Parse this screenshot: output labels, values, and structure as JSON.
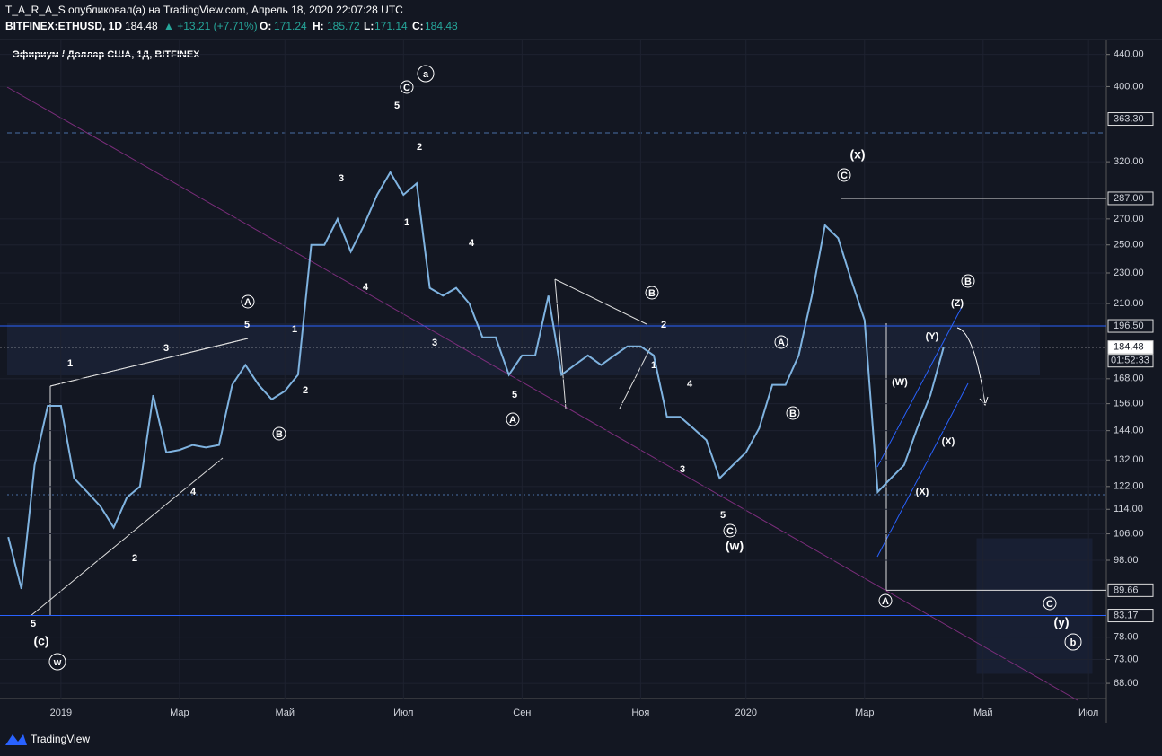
{
  "header": {
    "line1": "T_A_R_A_S опубликовал(а) на TradingView.com, Апрель 18, 2020 22:07:28 UTC",
    "symbol": "BITFINEX:ETHUSD, 1D",
    "last": "184.48",
    "change": "▲ +13.21 (+7.71%)",
    "o_label": "O:",
    "o": "171.24",
    "h_label": "H:",
    "h": "185.72",
    "l_label": "L:",
    "l": "171.14",
    "c_label": "C:",
    "c": "184.48"
  },
  "footer": {
    "brand": "TradingView"
  },
  "chart_data": {
    "type": "line",
    "title": "Эфириум / Доллар США, 1Д, BITFINEX",
    "categories": [
      null,
      null,
      null,
      null,
      "2019",
      null,
      null,
      null,
      null,
      null,
      null,
      null,
      null,
      "Мар",
      null,
      null,
      null,
      null,
      null,
      null,
      null,
      "Май",
      null,
      null,
      null,
      null,
      null,
      null,
      null,
      null,
      "Июл",
      null,
      null,
      null,
      null,
      null,
      null,
      null,
      null,
      "Сен",
      null,
      null,
      null,
      null,
      null,
      null,
      null,
      null,
      "Ноя",
      null,
      null,
      null,
      null,
      null,
      null,
      null,
      "2020",
      null,
      null,
      null,
      null,
      null,
      null,
      null,
      null,
      "Мар",
      null,
      null,
      null,
      null,
      null,
      null,
      null,
      null,
      "Май",
      null,
      null,
      null,
      null,
      null,
      null,
      null,
      "Июл"
    ],
    "series": [
      {
        "name": "ETHUSD",
        "color": "#7fb3e0",
        "values": [
          105,
          90,
          130,
          155,
          155,
          125,
          120,
          115,
          108,
          118,
          122,
          160,
          135,
          136,
          138,
          137,
          138,
          165,
          175,
          165,
          158,
          162,
          170,
          250,
          250,
          270,
          245,
          265,
          290,
          310,
          290,
          300,
          220,
          215,
          220,
          210,
          190,
          190,
          170,
          180,
          180,
          215,
          170,
          175,
          180,
          175,
          180,
          185,
          185,
          180,
          150,
          150,
          145,
          140,
          125,
          130,
          135,
          145,
          165,
          165,
          180,
          215,
          265,
          255,
          225,
          200,
          120,
          125,
          130,
          145,
          160,
          184.48,
          null,
          null,
          null,
          null,
          null,
          null,
          null,
          null,
          null,
          null,
          null
        ]
      }
    ],
    "log_scale": true,
    "ylim": [
      65,
      460
    ],
    "yticks": [
      {
        "value": 440,
        "label": "440.00"
      },
      {
        "value": 400,
        "label": "400.00"
      },
      {
        "value": 320,
        "label": "320.00"
      },
      {
        "value": 270,
        "label": "270.00"
      },
      {
        "value": 250,
        "label": "250.00"
      },
      {
        "value": 230,
        "label": "230.00"
      },
      {
        "value": 210,
        "label": "210.00"
      },
      {
        "value": 168,
        "label": "168.00"
      },
      {
        "value": 156,
        "label": "156.00"
      },
      {
        "value": 144,
        "label": "144.00"
      },
      {
        "value": 132,
        "label": "132.00"
      },
      {
        "value": 122,
        "label": "122.00"
      },
      {
        "value": 114,
        "label": "114.00"
      },
      {
        "value": 106,
        "label": "106.00"
      },
      {
        "value": 98,
        "label": "98.00"
      },
      {
        "value": 78,
        "label": "78.00"
      },
      {
        "value": 73,
        "label": "73.00"
      },
      {
        "value": 68,
        "label": "68.00"
      }
    ],
    "levels": [
      {
        "value": 363.3,
        "label": "363.30"
      },
      {
        "value": 287,
        "label": "287.00"
      },
      {
        "value": 196.5,
        "label": "196.50"
      },
      {
        "value": 184.48,
        "label": "184.48"
      },
      {
        "value": 89.66,
        "label": "89.66"
      },
      {
        "value": 83.17,
        "label": "83.17"
      }
    ],
    "countdown": "01:52:33",
    "annotations": [
      "a",
      "C",
      "5",
      "2",
      "3",
      "1",
      "4",
      "4",
      "3",
      "B",
      "2",
      "1",
      "5",
      "A",
      "4",
      "3",
      "5",
      "C",
      "(w)",
      "A",
      "B",
      "(x)",
      "C",
      "(W)",
      "(X)",
      "(X)",
      "(Y)",
      "(Z)",
      "B",
      "A",
      "C",
      "(y)",
      "b",
      "1",
      "3",
      "5",
      "A",
      "1",
      "2",
      "B",
      "4",
      "2",
      "5",
      "(c)",
      "w"
    ]
  }
}
